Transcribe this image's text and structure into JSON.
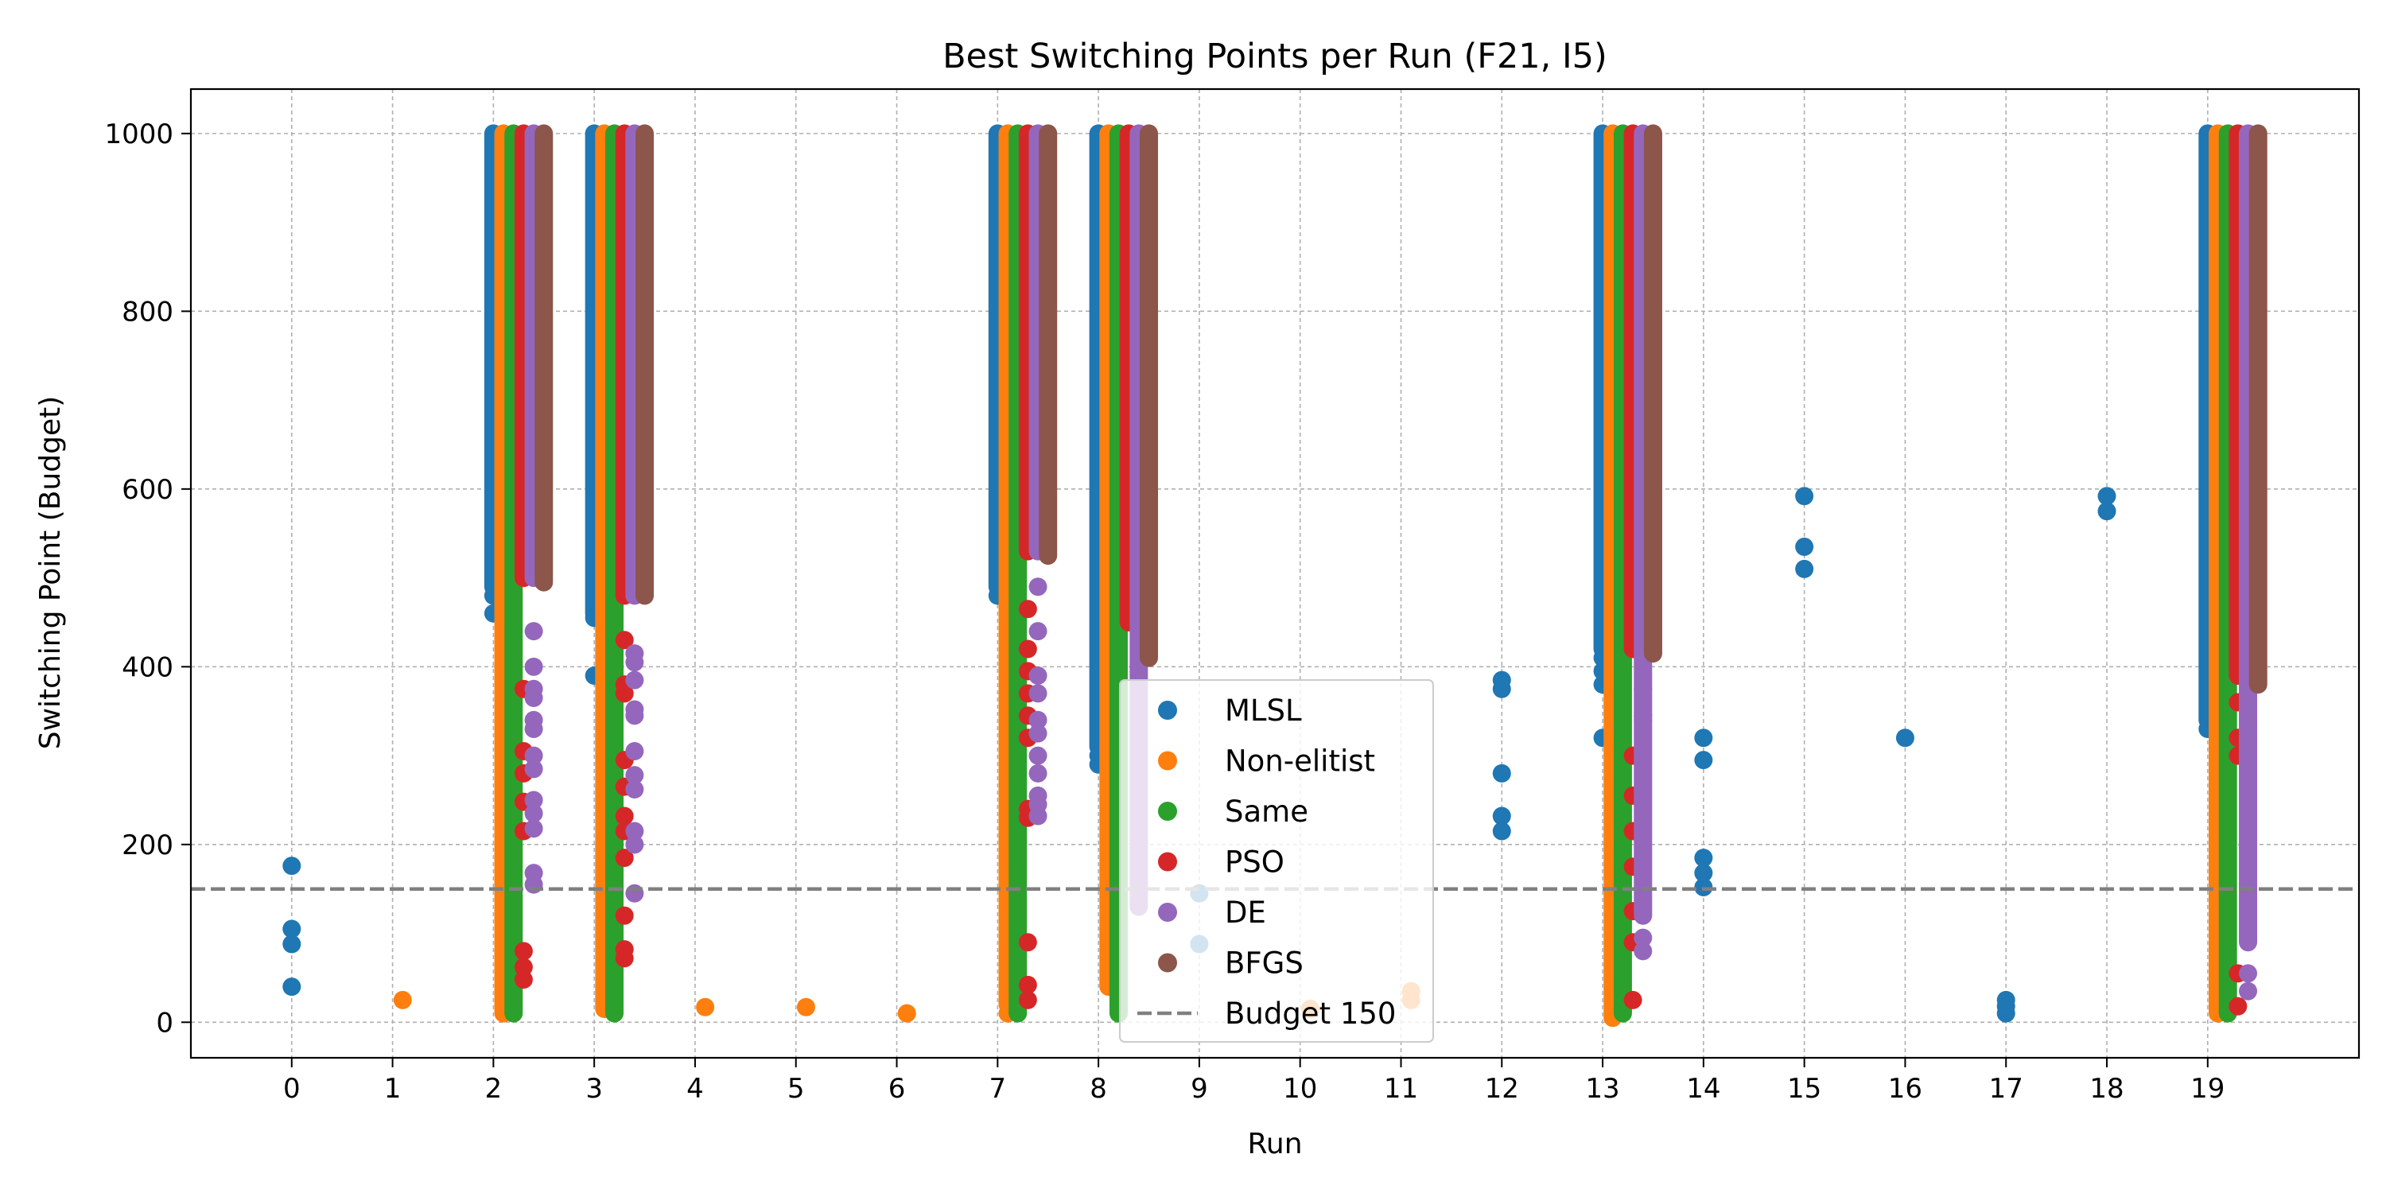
{
  "chart_data": {
    "type": "scatter",
    "title": "Best Switching Points per Run (F21, I5)",
    "xlabel": "Run",
    "ylabel": "Switching Point (Budget)",
    "xlim": [
      -1,
      20.5
    ],
    "ylim": [
      -40,
      1050
    ],
    "xticks": [
      0,
      1,
      2,
      3,
      4,
      5,
      6,
      7,
      8,
      9,
      10,
      11,
      12,
      13,
      14,
      15,
      16,
      17,
      18,
      19
    ],
    "yticks": [
      0,
      200,
      400,
      600,
      800,
      1000
    ],
    "grid": true,
    "legend_position": "center",
    "series": [
      {
        "name": "MLSL",
        "color": "#1f77b4",
        "offset": 0.0,
        "points": [
          [
            0,
            40
          ],
          [
            0,
            88
          ],
          [
            0,
            105
          ],
          [
            0,
            176
          ],
          [
            2,
            460
          ],
          [
            2,
            480
          ],
          [
            3,
            390
          ],
          [
            3,
            455
          ],
          [
            7,
            480
          ],
          [
            8,
            290
          ],
          [
            8,
            300
          ],
          [
            9,
            88
          ],
          [
            9,
            145
          ],
          [
            12,
            215
          ],
          [
            12,
            232
          ],
          [
            12,
            280
          ],
          [
            12,
            375
          ],
          [
            12,
            385
          ],
          [
            13,
            320
          ],
          [
            13,
            380
          ],
          [
            13,
            395
          ],
          [
            13,
            410
          ],
          [
            14,
            152
          ],
          [
            14,
            168
          ],
          [
            14,
            185
          ],
          [
            14,
            295
          ],
          [
            14,
            320
          ],
          [
            15,
            510
          ],
          [
            15,
            535
          ],
          [
            15,
            592
          ],
          [
            16,
            320
          ],
          [
            17,
            10
          ],
          [
            17,
            18
          ],
          [
            17,
            25
          ],
          [
            18,
            575
          ],
          [
            18,
            592
          ],
          [
            19,
            330
          ]
        ],
        "ranges": [
          [
            2,
            490,
            1000
          ],
          [
            3,
            460,
            1000
          ],
          [
            7,
            490,
            1000
          ],
          [
            8,
            310,
            1000
          ],
          [
            13,
            420,
            1000
          ],
          [
            19,
            340,
            1000
          ]
        ]
      },
      {
        "name": "Non-elitist",
        "color": "#ff7f0e",
        "offset": 0.1,
        "points": [
          [
            1,
            25
          ],
          [
            4,
            17
          ],
          [
            5,
            17
          ],
          [
            6,
            10
          ],
          [
            7,
            10
          ],
          [
            8,
            95
          ],
          [
            8,
            105
          ],
          [
            10,
            15
          ],
          [
            11,
            25
          ],
          [
            11,
            35
          ]
        ],
        "ranges": [
          [
            2,
            10,
            1000
          ],
          [
            3,
            15,
            1000
          ],
          [
            7,
            20,
            1000
          ],
          [
            8,
            40,
            1000
          ],
          [
            13,
            5,
            1000
          ],
          [
            19,
            10,
            1000
          ]
        ]
      },
      {
        "name": "Same",
        "color": "#2ca02c",
        "offset": 0.2,
        "points": [],
        "ranges": [
          [
            2,
            10,
            1000
          ],
          [
            3,
            10,
            1000
          ],
          [
            7,
            10,
            1000
          ],
          [
            8,
            10,
            1000
          ],
          [
            13,
            10,
            1000
          ],
          [
            19,
            10,
            1000
          ]
        ]
      },
      {
        "name": "PSO",
        "color": "#d62728",
        "offset": 0.3,
        "points": [
          [
            2,
            48
          ],
          [
            2,
            62
          ],
          [
            2,
            80
          ],
          [
            2,
            215
          ],
          [
            2,
            248
          ],
          [
            2,
            280
          ],
          [
            2,
            305
          ],
          [
            2,
            375
          ],
          [
            3,
            72
          ],
          [
            3,
            82
          ],
          [
            3,
            120
          ],
          [
            3,
            185
          ],
          [
            3,
            215
          ],
          [
            3,
            232
          ],
          [
            3,
            265
          ],
          [
            3,
            295
          ],
          [
            3,
            370
          ],
          [
            3,
            380
          ],
          [
            3,
            430
          ],
          [
            7,
            25
          ],
          [
            7,
            42
          ],
          [
            7,
            90
          ],
          [
            7,
            230
          ],
          [
            7,
            240
          ],
          [
            7,
            320
          ],
          [
            7,
            345
          ],
          [
            7,
            370
          ],
          [
            7,
            395
          ],
          [
            7,
            420
          ],
          [
            7,
            465
          ],
          [
            13,
            25
          ],
          [
            13,
            90
          ],
          [
            13,
            125
          ],
          [
            13,
            175
          ],
          [
            13,
            215
          ],
          [
            13,
            255
          ],
          [
            13,
            300
          ],
          [
            19,
            18
          ],
          [
            19,
            55
          ],
          [
            19,
            300
          ],
          [
            19,
            320
          ],
          [
            19,
            360
          ]
        ],
        "ranges": [
          [
            2,
            500,
            1000
          ],
          [
            3,
            480,
            1000
          ],
          [
            7,
            530,
            1000
          ],
          [
            8,
            450,
            1000
          ],
          [
            13,
            420,
            1000
          ],
          [
            19,
            390,
            1000
          ]
        ]
      },
      {
        "name": "DE",
        "color": "#9467bd",
        "offset": 0.4,
        "points": [
          [
            2,
            155
          ],
          [
            2,
            168
          ],
          [
            2,
            218
          ],
          [
            2,
            235
          ],
          [
            2,
            250
          ],
          [
            2,
            285
          ],
          [
            2,
            300
          ],
          [
            2,
            330
          ],
          [
            2,
            340
          ],
          [
            2,
            365
          ],
          [
            2,
            375
          ],
          [
            2,
            400
          ],
          [
            2,
            440
          ],
          [
            3,
            145
          ],
          [
            3,
            200
          ],
          [
            3,
            215
          ],
          [
            3,
            262
          ],
          [
            3,
            278
          ],
          [
            3,
            305
          ],
          [
            3,
            345
          ],
          [
            3,
            352
          ],
          [
            3,
            385
          ],
          [
            3,
            405
          ],
          [
            3,
            415
          ],
          [
            7,
            232
          ],
          [
            7,
            245
          ],
          [
            7,
            255
          ],
          [
            7,
            280
          ],
          [
            7,
            300
          ],
          [
            7,
            325
          ],
          [
            7,
            340
          ],
          [
            7,
            370
          ],
          [
            7,
            390
          ],
          [
            7,
            440
          ],
          [
            7,
            490
          ],
          [
            13,
            80
          ],
          [
            13,
            95
          ],
          [
            13,
            340
          ],
          [
            13,
            345
          ],
          [
            13,
            375
          ],
          [
            19,
            35
          ],
          [
            19,
            55
          ],
          [
            19,
            320
          ],
          [
            19,
            338
          ]
        ],
        "ranges": [
          [
            2,
            500,
            1000
          ],
          [
            3,
            480,
            1000
          ],
          [
            7,
            530,
            1000
          ],
          [
            8,
            130,
            1000
          ],
          [
            13,
            120,
            1000
          ],
          [
            19,
            90,
            1000
          ]
        ]
      },
      {
        "name": "BFGS",
        "color": "#8c564b",
        "offset": 0.5,
        "points": [],
        "ranges": [
          [
            2,
            495,
            1000
          ],
          [
            3,
            480,
            1000
          ],
          [
            7,
            525,
            1000
          ],
          [
            8,
            410,
            1000
          ],
          [
            13,
            415,
            1000
          ],
          [
            19,
            380,
            1000
          ]
        ]
      }
    ],
    "reference_line": {
      "name": "Budget 150",
      "y": 150,
      "color": "#808080"
    }
  }
}
